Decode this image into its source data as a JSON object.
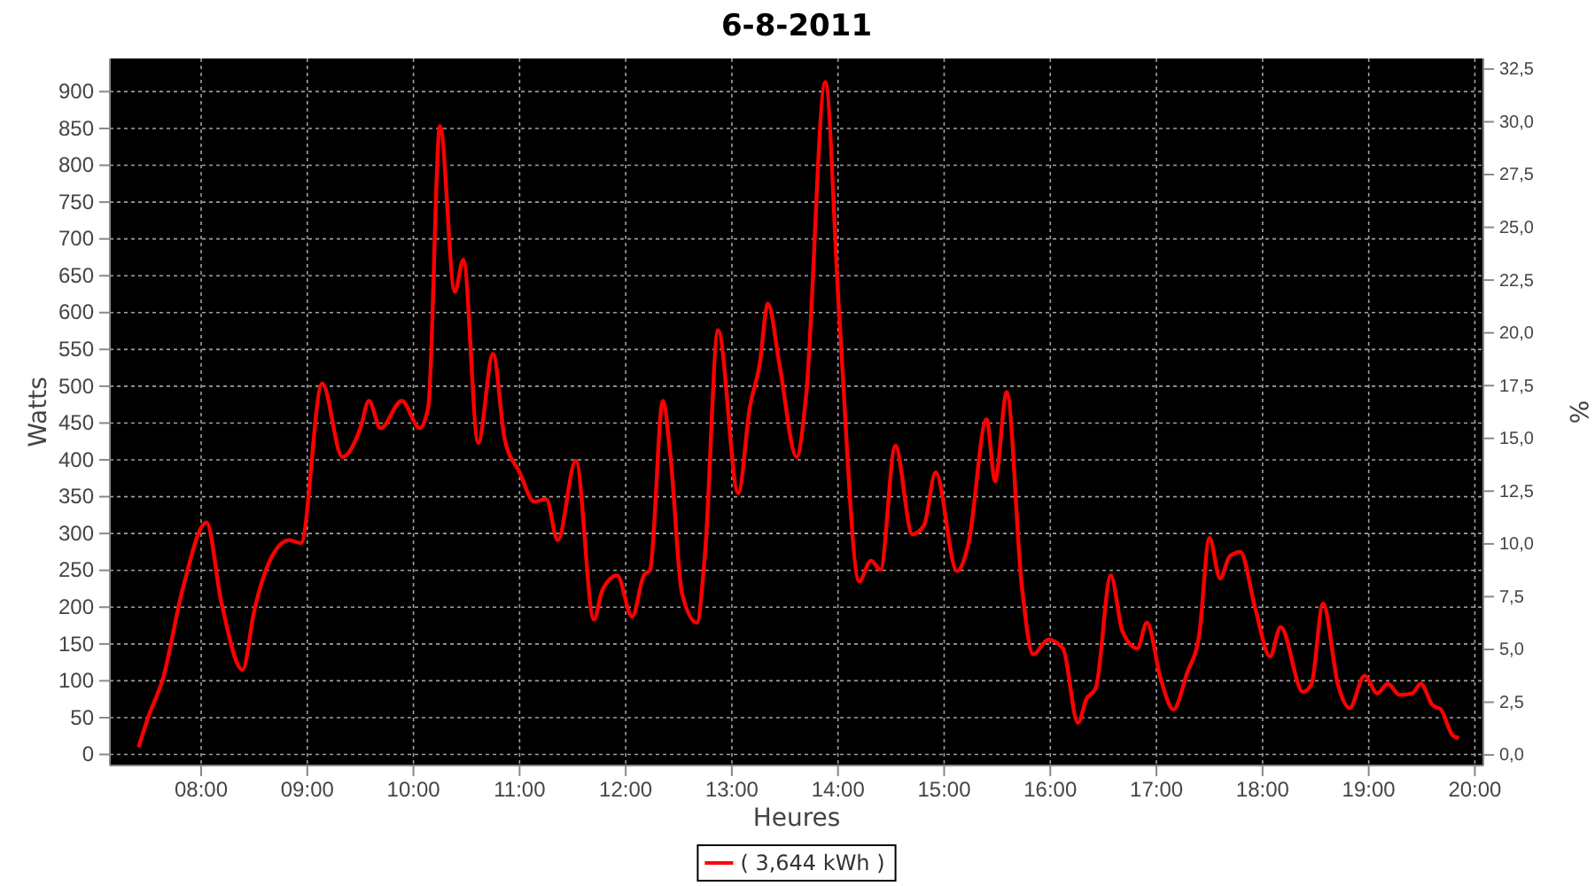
{
  "chart_data": {
    "type": "line",
    "title": "6-8-2011",
    "xlabel": "Heures",
    "ylabel": "Watts",
    "y2label": "%",
    "xlim": [
      7.14,
      20.08
    ],
    "xticks": [
      {
        "value": 8,
        "label": "08:00"
      },
      {
        "value": 9,
        "label": "09:00"
      },
      {
        "value": 10,
        "label": "10:00"
      },
      {
        "value": 11,
        "label": "11:00"
      },
      {
        "value": 12,
        "label": "12:00"
      },
      {
        "value": 13,
        "label": "13:00"
      },
      {
        "value": 14,
        "label": "14:00"
      },
      {
        "value": 15,
        "label": "15:00"
      },
      {
        "value": 16,
        "label": "16:00"
      },
      {
        "value": 17,
        "label": "17:00"
      },
      {
        "value": 18,
        "label": "18:00"
      },
      {
        "value": 19,
        "label": "19:00"
      },
      {
        "value": 20,
        "label": "20:00"
      }
    ],
    "ylim": [
      -15,
      945
    ],
    "yticks": [
      0,
      50,
      100,
      150,
      200,
      250,
      300,
      350,
      400,
      450,
      500,
      550,
      600,
      650,
      700,
      750,
      800,
      850,
      900
    ],
    "y2lim": [
      -0.5,
      33
    ],
    "y2ticks": [
      {
        "value": 0,
        "label": "0,0"
      },
      {
        "value": 2.5,
        "label": "2,5"
      },
      {
        "value": 5,
        "label": "5,0"
      },
      {
        "value": 7.5,
        "label": "7,5"
      },
      {
        "value": 10,
        "label": "10,0"
      },
      {
        "value": 12.5,
        "label": "12,5"
      },
      {
        "value": 15,
        "label": "15,0"
      },
      {
        "value": 17.5,
        "label": "17,5"
      },
      {
        "value": 20,
        "label": "20,0"
      },
      {
        "value": 22.5,
        "label": "22,5"
      },
      {
        "value": 25,
        "label": "25,0"
      },
      {
        "value": 27.5,
        "label": "27,5"
      },
      {
        "value": 30,
        "label": "30,0"
      },
      {
        "value": 32.5,
        "label": "32,5"
      }
    ],
    "grid": true,
    "legend": "bottom",
    "line_style": "solid",
    "marker": "none",
    "series": [
      {
        "name": "( 3,644 kWh )",
        "color": "#ff0000",
        "x": [
          7.41,
          7.5,
          7.64,
          7.83,
          8.05,
          8.19,
          8.39,
          8.5,
          8.66,
          8.83,
          8.94,
          9.14,
          9.33,
          9.5,
          9.58,
          9.69,
          9.89,
          10.06,
          10.14,
          10.25,
          10.39,
          10.47,
          10.61,
          10.75,
          10.86,
          11.0,
          11.14,
          11.25,
          11.36,
          11.53,
          11.7,
          11.78,
          11.92,
          12.06,
          12.17,
          12.23,
          12.35,
          12.42,
          12.53,
          12.67,
          12.75,
          12.87,
          13.06,
          13.17,
          13.26,
          13.34,
          13.45,
          13.61,
          13.7,
          13.88,
          14.01,
          14.2,
          14.31,
          14.4,
          14.54,
          14.7,
          14.81,
          14.92,
          15.12,
          15.23,
          15.4,
          15.48,
          15.59,
          15.73,
          15.84,
          15.98,
          16.12,
          16.26,
          16.34,
          16.43,
          16.57,
          16.68,
          16.82,
          16.91,
          17.04,
          17.16,
          17.29,
          17.4,
          17.5,
          17.6,
          17.69,
          17.79,
          17.93,
          18.07,
          18.17,
          18.38,
          18.46,
          18.57,
          18.71,
          18.82,
          18.96,
          19.08,
          19.18,
          19.29,
          19.41,
          19.49,
          19.6,
          19.68,
          19.79,
          19.85
        ],
        "values": [
          10,
          50,
          103,
          227,
          315,
          207,
          115,
          195,
          267,
          291,
          287,
          504,
          404,
          443,
          480,
          443,
          480,
          443,
          472,
          853,
          628,
          672,
          423,
          544,
          428,
          383,
          343,
          347,
          291,
          399,
          183,
          223,
          243,
          187,
          243,
          251,
          480,
          407,
          219,
          179,
          279,
          576,
          355,
          472,
          528,
          612,
          528,
          404,
          488,
          913,
          600,
          235,
          263,
          251,
          419,
          299,
          311,
          383,
          249,
          287,
          455,
          371,
          492,
          231,
          136,
          156,
          144,
          43,
          75,
          91,
          243,
          167,
          144,
          179,
          103,
          61,
          111,
          159,
          294,
          239,
          269,
          275,
          199,
          133,
          173,
          85,
          95,
          205,
          95,
          63,
          107,
          83,
          96,
          81,
          83,
          96,
          67,
          61,
          26,
          22
        ]
      }
    ]
  }
}
